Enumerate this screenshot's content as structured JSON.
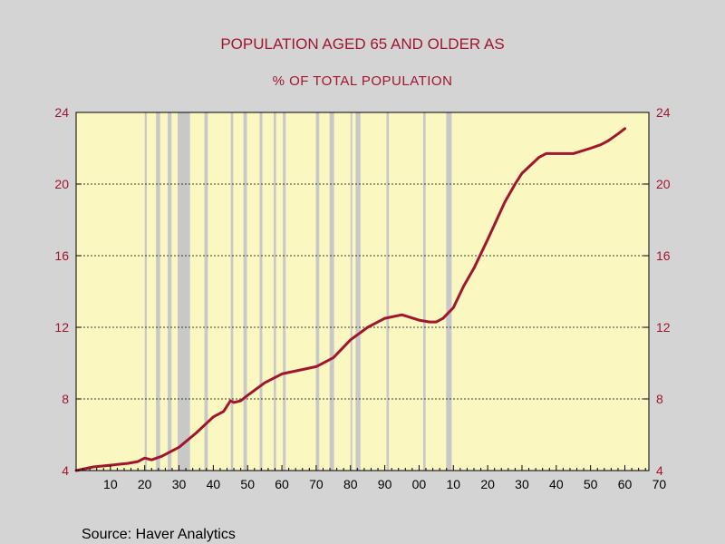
{
  "chart_data": {
    "type": "line",
    "title": "POPULATION AGED 65 AND OLDER AS",
    "subtitle": "% OF TOTAL POPULATION",
    "source": "Source:  Haver Analytics",
    "ylim": [
      4,
      24
    ],
    "yticks": [
      4,
      8,
      12,
      16,
      20,
      24
    ],
    "ytick_labels": [
      "4",
      "8",
      "12",
      "16",
      "20",
      "24"
    ],
    "xlim": [
      1900,
      2067
    ],
    "xticks": [
      1910,
      1920,
      1930,
      1940,
      1950,
      1960,
      1970,
      1980,
      1990,
      2000,
      2010,
      2020,
      2030,
      2040,
      2050,
      2060,
      2070
    ],
    "xtick_labels": [
      "10",
      "20",
      "30",
      "40",
      "50",
      "60",
      "70",
      "80",
      "90",
      "00",
      "10",
      "20",
      "30",
      "40",
      "50",
      "60",
      "70"
    ],
    "grid": "horizontal-dashed",
    "colors": {
      "line": "#a0162f",
      "plot_bg": "#fbf7c0",
      "recession": "#c8c8c8",
      "text": "#a0162f"
    },
    "recessions": [
      [
        1920.0,
        1920.6
      ],
      [
        1923.3,
        1924.5
      ],
      [
        1926.7,
        1927.8
      ],
      [
        1929.6,
        1933.2
      ],
      [
        1937.4,
        1938.4
      ],
      [
        1945.1,
        1945.8
      ],
      [
        1948.8,
        1949.8
      ],
      [
        1953.5,
        1954.3
      ],
      [
        1957.6,
        1958.3
      ],
      [
        1960.3,
        1961.1
      ],
      [
        1969.9,
        1970.9
      ],
      [
        1973.9,
        1975.2
      ],
      [
        1980.0,
        1980.5
      ],
      [
        1981.5,
        1982.9
      ],
      [
        1990.5,
        1991.2
      ],
      [
        2001.2,
        2001.9
      ],
      [
        2007.9,
        2009.5
      ]
    ],
    "series": [
      {
        "x": [
          1900,
          1905,
          1910,
          1915,
          1918,
          1920,
          1922,
          1925,
          1930,
          1935,
          1940,
          1943,
          1945,
          1946,
          1948,
          1950,
          1955,
          1960,
          1965,
          1970,
          1975,
          1980,
          1985,
          1988,
          1990,
          1995,
          2000,
          2003,
          2005,
          2007,
          2010,
          2013,
          2016,
          2020,
          2025,
          2028,
          2030,
          2035,
          2037,
          2040,
          2045,
          2050,
          2053,
          2055,
          2058,
          2060
        ],
        "values": [
          4.0,
          4.2,
          4.3,
          4.4,
          4.5,
          4.7,
          4.6,
          4.8,
          5.3,
          6.1,
          7.0,
          7.3,
          7.9,
          7.8,
          7.9,
          8.2,
          8.9,
          9.4,
          9.6,
          9.8,
          10.3,
          11.3,
          12.0,
          12.3,
          12.5,
          12.7,
          12.4,
          12.3,
          12.3,
          12.5,
          13.1,
          14.3,
          15.3,
          16.9,
          19.0,
          20.0,
          20.6,
          21.5,
          21.7,
          21.7,
          21.7,
          22.0,
          22.2,
          22.4,
          22.8,
          23.1
        ]
      }
    ]
  }
}
